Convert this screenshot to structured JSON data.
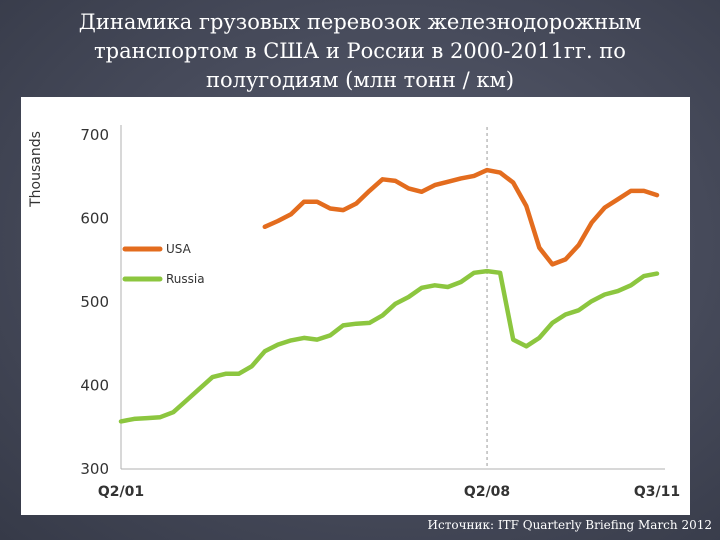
{
  "title": {
    "line1": "Динамика грузовых перевозок железнодорожным",
    "line2": "транспортом в США и России в 2000-2011гг. по",
    "line3": "полугодиям (млн тонн / км)"
  },
  "source": "Источник: ITF Quarterly Briefing March 2012",
  "chart_data": {
    "type": "line",
    "ylabel": "Thousands",
    "ylim": [
      300,
      700
    ],
    "yticks": [
      300,
      400,
      500,
      600,
      700
    ],
    "xrange": [
      0,
      41
    ],
    "xticks": [
      {
        "pos": 0,
        "label": "Q2/01"
      },
      {
        "pos": 28,
        "label": "Q2/08"
      },
      {
        "pos": 41,
        "label": "Q3/11"
      }
    ],
    "vline_at": 28,
    "legend_position": "left",
    "series": [
      {
        "name": "USA",
        "color": "#e36c1e",
        "x": [
          11,
          12,
          13,
          14,
          15,
          16,
          17,
          18,
          19,
          20,
          21,
          22,
          23,
          24,
          25,
          26,
          27,
          28,
          29,
          30,
          31,
          32,
          33,
          34,
          35,
          36,
          37,
          38,
          39,
          40,
          41
        ],
        "values": [
          590,
          597,
          605,
          620,
          620,
          612,
          610,
          618,
          633,
          647,
          645,
          636,
          632,
          640,
          644,
          648,
          651,
          658,
          655,
          643,
          615,
          565,
          545,
          551,
          568,
          595,
          613,
          623,
          633,
          633,
          628
        ]
      },
      {
        "name": "Russia",
        "color": "#8cc63f",
        "x": [
          0,
          1,
          2,
          3,
          4,
          5,
          6,
          7,
          8,
          9,
          10,
          11,
          12,
          13,
          14,
          15,
          16,
          17,
          18,
          19,
          20,
          21,
          22,
          23,
          24,
          25,
          26,
          27,
          28,
          29,
          30,
          31,
          32,
          33,
          34,
          35,
          36,
          37,
          38,
          39,
          40,
          41
        ],
        "values": [
          357,
          360,
          361,
          362,
          368,
          382,
          396,
          410,
          414,
          414,
          423,
          441,
          449,
          454,
          457,
          455,
          460,
          472,
          474,
          475,
          484,
          498,
          506,
          517,
          520,
          518,
          524,
          535,
          537,
          535,
          455,
          447,
          457,
          475,
          485,
          490,
          501,
          509,
          513,
          520,
          531,
          534
        ]
      }
    ]
  }
}
